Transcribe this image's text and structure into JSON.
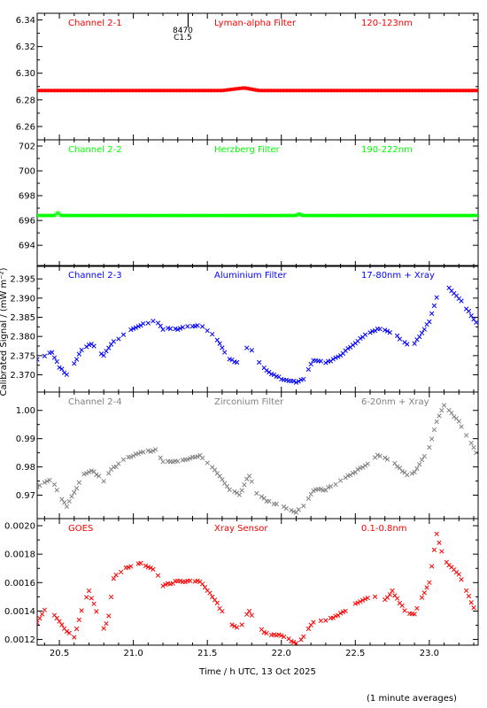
{
  "figure": {
    "ylabel": "Calibrated Signal / (mW m⁻²)",
    "xlabel": "Time / h UTC, 13 Oct 2025",
    "footnote": "(1 minute averages)",
    "marker_label_1": "8470",
    "marker_label_2": "C1.5",
    "marker_time": 21.37,
    "xlim": [
      20.35,
      23.33
    ],
    "xticks": [
      20.5,
      21.0,
      21.5,
      22.0,
      22.5,
      23.0
    ],
    "xtick_labels": [
      "20.5",
      "21.0",
      "21.5",
      "22.0",
      "22.5",
      "23.0"
    ]
  },
  "chart_data": [
    {
      "type": "scatter",
      "channel": "Channel 2-1",
      "filter": "Lyman-alpha Filter",
      "band": "120-123nm",
      "color": "#ff0000",
      "ylim": [
        6.25,
        6.345
      ],
      "yticks": [
        6.26,
        6.28,
        6.3,
        6.32,
        6.34
      ],
      "ytick_labels": [
        "6.26",
        "6.28",
        "6.30",
        "6.32",
        "6.34"
      ],
      "x": [
        20.35,
        21.0,
        21.6,
        21.75,
        21.85,
        22.0,
        22.5,
        23.0,
        23.33
      ],
      "y": [
        6.287,
        6.287,
        6.287,
        6.289,
        6.287,
        6.287,
        6.287,
        6.287,
        6.287
      ]
    },
    {
      "type": "scatter",
      "channel": "Channel 2-2",
      "filter": "Herzberg Filter",
      "band": "190-222nm",
      "color": "#00ff00",
      "ylim": [
        692.3,
        702.5
      ],
      "yticks": [
        694,
        696,
        698,
        700,
        702
      ],
      "ytick_labels": [
        "694",
        "696",
        "698",
        "700",
        "702"
      ],
      "x": [
        20.35,
        20.47,
        20.49,
        20.51,
        21.0,
        22.1,
        22.12,
        22.14,
        22.5,
        23.33
      ],
      "y": [
        696.4,
        696.4,
        696.65,
        696.4,
        696.4,
        696.4,
        696.55,
        696.4,
        696.4,
        696.4
      ]
    },
    {
      "type": "scatter",
      "channel": "Channel 2-3",
      "filter": "Aluminium Filter",
      "band": "17-80nm + Xray",
      "color": "#0000ff",
      "ylim": [
        2.3655,
        2.3985
      ],
      "yticks": [
        2.37,
        2.375,
        2.38,
        2.385,
        2.39,
        2.395
      ],
      "ytick_labels": [
        "2.370",
        "2.375",
        "2.380",
        "2.385",
        "2.390",
        "2.395"
      ],
      "x": [
        20.35,
        20.45,
        20.5,
        20.55,
        20.6,
        20.66,
        20.72,
        20.8,
        20.85,
        20.95,
        21.05,
        21.15,
        21.2,
        21.3,
        21.45,
        21.55,
        21.65,
        21.72,
        21.78,
        21.83,
        21.9,
        22.0,
        22.1,
        22.15,
        22.22,
        22.3,
        22.4,
        22.55,
        22.65,
        22.75,
        22.85,
        22.9,
        23.0,
        23.05,
        23.1,
        23.2,
        23.33
      ],
      "y": [
        2.374,
        2.376,
        2.372,
        2.37,
        2.373,
        2.377,
        2.378,
        2.375,
        2.378,
        2.381,
        2.383,
        2.384,
        2.382,
        2.382,
        2.383,
        2.38,
        2.374,
        2.373,
        2.378,
        2.374,
        2.371,
        2.369,
        2.368,
        2.369,
        2.374,
        2.373,
        2.375,
        2.38,
        2.382,
        2.381,
        2.378,
        2.378,
        2.384,
        2.39,
        2.394,
        2.39,
        2.383
      ]
    },
    {
      "type": "scatter",
      "channel": "Channel 2-4",
      "filter": "Zirconium Filter",
      "band": "6-20nm + Xray",
      "color": "#808080",
      "ylim": [
        0.9617,
        1.0065
      ],
      "yticks": [
        0.97,
        0.98,
        0.99,
        1.0
      ],
      "ytick_labels": [
        "0.97",
        "0.98",
        "0.99",
        "1.00"
      ],
      "x": [
        20.35,
        20.45,
        20.5,
        20.55,
        20.6,
        20.66,
        20.72,
        20.8,
        20.85,
        20.95,
        21.05,
        21.15,
        21.2,
        21.3,
        21.45,
        21.55,
        21.65,
        21.72,
        21.78,
        21.83,
        21.9,
        22.0,
        22.1,
        22.15,
        22.22,
        22.3,
        22.4,
        22.55,
        22.65,
        22.75,
        22.85,
        22.9,
        23.0,
        23.05,
        23.1,
        23.2,
        23.33
      ],
      "y": [
        0.973,
        0.976,
        0.97,
        0.966,
        0.971,
        0.977,
        0.979,
        0.975,
        0.979,
        0.983,
        0.985,
        0.986,
        0.982,
        0.982,
        0.984,
        0.979,
        0.972,
        0.97,
        0.977,
        0.971,
        0.968,
        0.966,
        0.964,
        0.966,
        0.972,
        0.972,
        0.975,
        0.98,
        0.984,
        0.982,
        0.977,
        0.978,
        0.987,
        0.996,
        1.002,
        0.996,
        0.984
      ]
    },
    {
      "type": "scatter",
      "channel": "GOES",
      "filter": "Xray Sensor",
      "band": "0.1-0.8nm",
      "color": "#ff0000",
      "ylim": [
        0.00116,
        0.00205
      ],
      "yticks": [
        0.0012,
        0.0014,
        0.0016,
        0.0018,
        0.002
      ],
      "ytick_labels": [
        "0.0012",
        "0.0014",
        "0.0016",
        "0.0018",
        "0.0020"
      ],
      "x": [
        20.35,
        20.42,
        20.48,
        20.55,
        20.6,
        20.65,
        20.7,
        20.75,
        20.8,
        20.83,
        20.87,
        20.95,
        21.05,
        21.15,
        21.2,
        21.3,
        21.45,
        21.55,
        21.65,
        21.72,
        21.78,
        21.83,
        21.9,
        22.0,
        22.1,
        22.15,
        22.22,
        22.3,
        22.4,
        22.55,
        22.62,
        22.7,
        22.75,
        22.85,
        22.9,
        23.0,
        23.05,
        23.1,
        23.2,
        23.33
      ],
      "y": [
        0.00132,
        0.00144,
        0.00135,
        0.00126,
        0.00122,
        0.0014,
        0.00154,
        0.0014,
        0.00128,
        0.00134,
        0.00165,
        0.0017,
        0.00174,
        0.00168,
        0.00158,
        0.00161,
        0.00161,
        0.00148,
        0.00131,
        0.00127,
        0.00141,
        0.0013,
        0.00124,
        0.00123,
        0.00117,
        0.00122,
        0.00133,
        0.00133,
        0.00138,
        0.00148,
        0.0015,
        0.00148,
        0.00154,
        0.00138,
        0.00138,
        0.0016,
        0.00194,
        0.00176,
        0.00166,
        0.00135
      ]
    }
  ]
}
